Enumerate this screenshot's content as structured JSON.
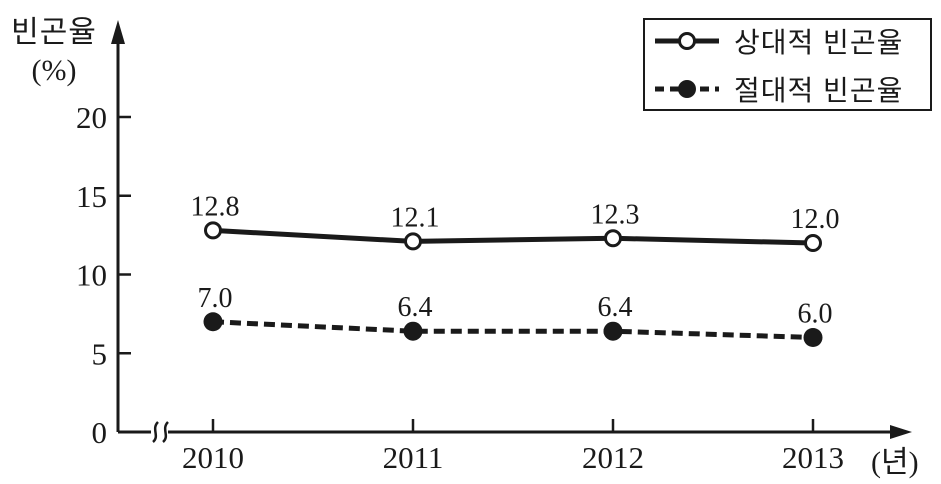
{
  "chart_data": {
    "type": "line",
    "title": "",
    "ylabel_line1": "빈곤율",
    "ylabel_line2": "(%)",
    "x_unit_label": "(년)",
    "categories": [
      "2010",
      "2011",
      "2012",
      "2013"
    ],
    "yticks": [
      0,
      5,
      10,
      15,
      20
    ],
    "ylim": [
      0,
      20
    ],
    "grid": false,
    "axis_break_on_x": true,
    "legend_position": "top-right",
    "series": [
      {
        "name": "상대적 빈곤율",
        "values": [
          12.8,
          12.1,
          12.3,
          12.0
        ],
        "labels": [
          "12.8",
          "12.1",
          "12.3",
          "12.0"
        ],
        "line_style": "solid",
        "marker": "open-circle"
      },
      {
        "name": "절대적 빈곤율",
        "values": [
          7.0,
          6.4,
          6.4,
          6.0
        ],
        "labels": [
          "7.0",
          "6.4",
          "6.4",
          "6.0"
        ],
        "line_style": "dashed",
        "marker": "filled-circle"
      }
    ],
    "colors": {
      "ink": "#1a1a1a",
      "background": "#ffffff"
    }
  }
}
